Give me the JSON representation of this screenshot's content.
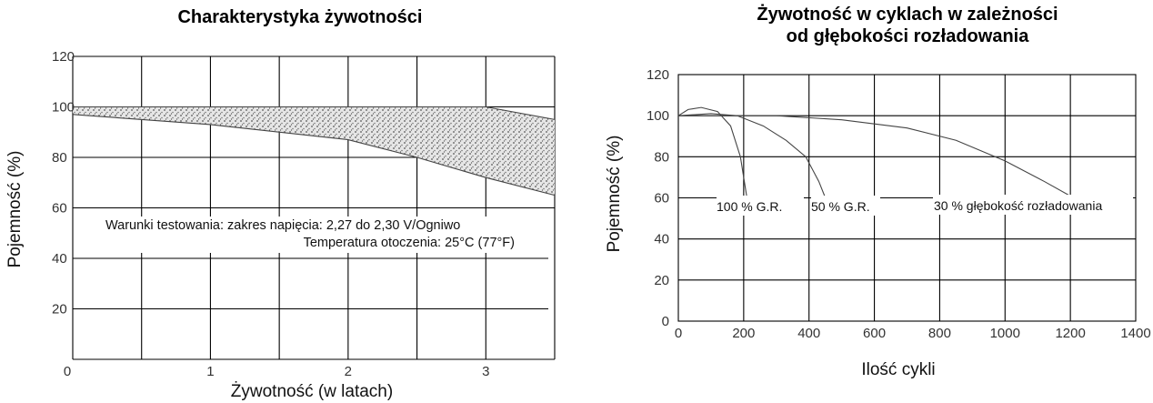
{
  "chart_data": [
    {
      "type": "area",
      "title": "Charakterystyka żywotności",
      "xlabel": "Żywotność (w latach)",
      "ylabel": "Pojemność (%)",
      "xlim": [
        0,
        3.5
      ],
      "ylim": [
        0,
        120
      ],
      "x_ticks": [
        "0",
        "1",
        "2",
        "3"
      ],
      "y_ticks": [
        "20",
        "40",
        "60",
        "80",
        "100",
        "120"
      ],
      "grid": true,
      "notes": [
        "Warunki testowania: zakres napięcia: 2,27 do 2,30 V/Ogniwo",
        "Temperatura otoczenia: 25°C (77°F)"
      ],
      "band": {
        "upper": {
          "x": [
            0,
            3.0,
            3.5
          ],
          "y": [
            100,
            100,
            95
          ]
        },
        "lower": {
          "x": [
            0,
            1.0,
            2.0,
            2.5,
            3.0,
            3.5
          ],
          "y": [
            97,
            93,
            87,
            80,
            72,
            65
          ]
        }
      }
    },
    {
      "type": "line",
      "title": "Żywotność w cyklach w zależności\nod głębokości rozładowania",
      "title_lines": [
        "Żywotność w cyklach w zależności",
        "od głębokości rozładowania"
      ],
      "xlabel": "Ilość cykli",
      "ylabel": "Pojemność (%)",
      "xlim": [
        0,
        1400
      ],
      "ylim": [
        0,
        120
      ],
      "x_ticks": [
        "0",
        "200",
        "400",
        "600",
        "800",
        "1000",
        "1200",
        "1400"
      ],
      "y_ticks": [
        "0",
        "20",
        "40",
        "60",
        "80",
        "100",
        "120"
      ],
      "grid": true,
      "series": [
        {
          "name": "100 % G.R.",
          "x": [
            0,
            30,
            70,
            120,
            160,
            190,
            210
          ],
          "y": [
            100,
            103,
            104,
            102,
            95,
            80,
            60
          ]
        },
        {
          "name": "50 % G.R.",
          "x": [
            0,
            100,
            180,
            260,
            330,
            390,
            430,
            450
          ],
          "y": [
            100,
            101,
            100,
            95,
            88,
            80,
            68,
            60
          ]
        },
        {
          "name": "30 % głębokość rozładowania",
          "x": [
            0,
            300,
            500,
            700,
            850,
            1000,
            1120,
            1210
          ],
          "y": [
            100,
            100,
            98,
            94,
            88,
            78,
            68,
            60
          ]
        }
      ]
    }
  ]
}
